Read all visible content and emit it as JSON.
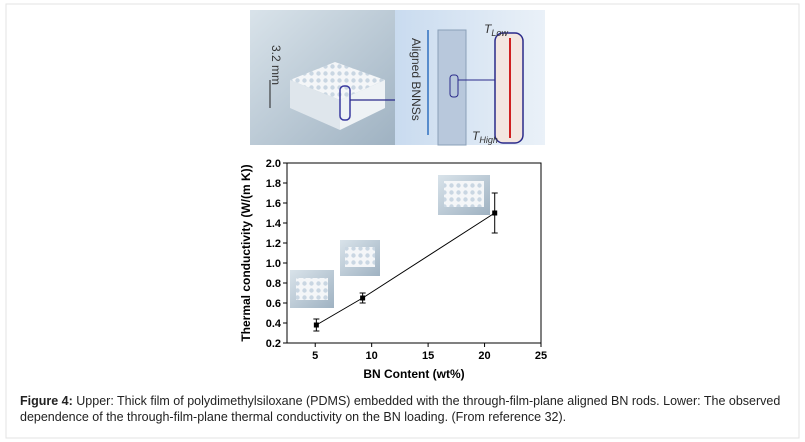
{
  "illustration": {
    "scale_label": "3.2 mm",
    "aligned_label": "Aligned BNNSs",
    "t_low": {
      "symbol": "T",
      "subscript": "Low"
    },
    "t_high": {
      "symbol": "T",
      "subscript": "High"
    }
  },
  "chart_data": {
    "type": "line",
    "y_label": "Thermal conductivity  (W/(m K))",
    "x_label": "BN Content (wt%)",
    "series": [
      {
        "name": "Thermal conductivity",
        "color": "#000000",
        "x": [
          5.1,
          9.2,
          20.9
        ],
        "values": [
          0.38,
          0.65,
          1.5
        ],
        "errors": [
          0.06,
          0.05,
          0.2
        ]
      }
    ],
    "xlim": [
      2.5,
      25
    ],
    "xticks": [
      5,
      10,
      15,
      20,
      25
    ],
    "ylim": [
      0.2,
      2.0
    ],
    "yticks": [
      0.2,
      0.4,
      0.6,
      0.8,
      {
        "value": 1,
        "label": "1.0"
      },
      1.2,
      1.4,
      1.6,
      1.8,
      {
        "value": 2,
        "label": "2.0"
      }
    ]
  },
  "caption": {
    "label": "Figure 4:",
    "text": "Upper: Thick film of polydimethylsiloxane (PDMS) embedded with the through-film-plane aligned BN rods. Lower: The observed dependence of the through-film-plane thermal conductivity on the BN loading. (From reference 32)."
  }
}
